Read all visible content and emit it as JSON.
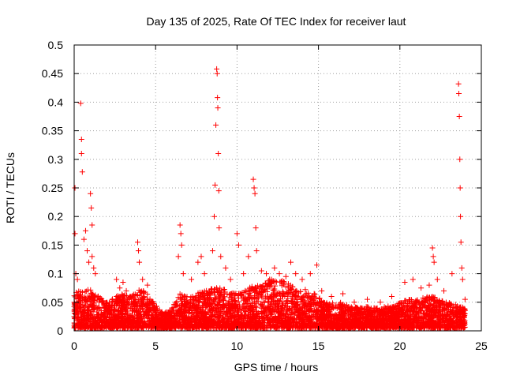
{
  "chart_data": {
    "type": "scatter",
    "title": "Day 135 of 2025, Rate Of TEC Index for receiver laut",
    "xlabel": "GPS time / hours",
    "ylabel": "ROTI / TECUs",
    "xlim": [
      0,
      25
    ],
    "ylim": [
      0,
      0.5
    ],
    "x_ticks": [
      0,
      5,
      10,
      15,
      20,
      25
    ],
    "x_tick_labels": [
      "0",
      "5",
      "10",
      "15",
      "20",
      "25"
    ],
    "y_ticks": [
      0,
      0.05,
      0.1,
      0.15,
      0.2,
      0.25,
      0.3,
      0.35,
      0.4,
      0.45,
      0.5
    ],
    "y_tick_labels": [
      "0",
      "0.05",
      "0.1",
      "0.15",
      "0.2",
      "0.25",
      "0.3",
      "0.35",
      "0.4",
      "0.45",
      "0.5"
    ],
    "grid": true,
    "marker": "+",
    "colors": {
      "marker": "#ff0000",
      "grid": "#a0a0a0",
      "axis": "#000000"
    },
    "series": [
      {
        "name": "laut",
        "data_description": "dense ROTI point cloud 0-24h, mostly 0.005-0.06 TECU/min",
        "points": [
          [
            0.05,
            0.25
          ],
          [
            0.05,
            0.17
          ],
          [
            0.1,
            0.1
          ],
          [
            0.2,
            0.09
          ],
          [
            0.4,
            0.398
          ],
          [
            0.45,
            0.335
          ],
          [
            0.45,
            0.31
          ],
          [
            0.5,
            0.278
          ],
          [
            0.6,
            0.16
          ],
          [
            0.7,
            0.175
          ],
          [
            0.8,
            0.14
          ],
          [
            0.9,
            0.12
          ],
          [
            1.0,
            0.24
          ],
          [
            1.05,
            0.215
          ],
          [
            1.1,
            0.185
          ],
          [
            1.1,
            0.13
          ],
          [
            1.2,
            0.11
          ],
          [
            1.3,
            0.1
          ],
          [
            2.6,
            0.09
          ],
          [
            2.8,
            0.075
          ],
          [
            3.0,
            0.085
          ],
          [
            3.2,
            0.07
          ],
          [
            3.9,
            0.155
          ],
          [
            3.95,
            0.14
          ],
          [
            4.0,
            0.12
          ],
          [
            4.2,
            0.09
          ],
          [
            4.5,
            0.08
          ],
          [
            6.4,
            0.13
          ],
          [
            6.5,
            0.185
          ],
          [
            6.55,
            0.17
          ],
          [
            6.6,
            0.15
          ],
          [
            6.7,
            0.1
          ],
          [
            7.2,
            0.09
          ],
          [
            7.6,
            0.12
          ],
          [
            7.8,
            0.13
          ],
          [
            8.0,
            0.1
          ],
          [
            8.5,
            0.14
          ],
          [
            8.6,
            0.2
          ],
          [
            8.65,
            0.255
          ],
          [
            8.7,
            0.36
          ],
          [
            8.75,
            0.458
          ],
          [
            8.78,
            0.45
          ],
          [
            8.8,
            0.408
          ],
          [
            8.82,
            0.39
          ],
          [
            8.85,
            0.31
          ],
          [
            8.88,
            0.245
          ],
          [
            8.9,
            0.18
          ],
          [
            9.0,
            0.13
          ],
          [
            9.3,
            0.11
          ],
          [
            9.6,
            0.09
          ],
          [
            10.0,
            0.17
          ],
          [
            10.1,
            0.15
          ],
          [
            10.4,
            0.1
          ],
          [
            10.7,
            0.13
          ],
          [
            11.0,
            0.265
          ],
          [
            11.05,
            0.25
          ],
          [
            11.1,
            0.24
          ],
          [
            11.15,
            0.18
          ],
          [
            11.2,
            0.14
          ],
          [
            11.5,
            0.105
          ],
          [
            11.8,
            0.1
          ],
          [
            12.0,
            0.09
          ],
          [
            12.3,
            0.11
          ],
          [
            12.6,
            0.1
          ],
          [
            13.0,
            0.095
          ],
          [
            13.3,
            0.12
          ],
          [
            13.6,
            0.1
          ],
          [
            14.0,
            0.09
          ],
          [
            14.5,
            0.1
          ],
          [
            14.9,
            0.115
          ],
          [
            15.2,
            0.07
          ],
          [
            15.8,
            0.06
          ],
          [
            16.5,
            0.065
          ],
          [
            17.2,
            0.05
          ],
          [
            18.0,
            0.055
          ],
          [
            18.8,
            0.05
          ],
          [
            19.5,
            0.06
          ],
          [
            20.3,
            0.085
          ],
          [
            20.8,
            0.09
          ],
          [
            21.3,
            0.075
          ],
          [
            21.8,
            0.08
          ],
          [
            22.0,
            0.145
          ],
          [
            22.05,
            0.13
          ],
          [
            22.1,
            0.12
          ],
          [
            22.3,
            0.09
          ],
          [
            22.7,
            0.07
          ],
          [
            23.2,
            0.1
          ],
          [
            23.6,
            0.432
          ],
          [
            23.62,
            0.415
          ],
          [
            23.65,
            0.375
          ],
          [
            23.68,
            0.3
          ],
          [
            23.7,
            0.25
          ],
          [
            23.72,
            0.2
          ],
          [
            23.75,
            0.155
          ],
          [
            23.8,
            0.11
          ],
          [
            23.85,
            0.09
          ],
          [
            24.0,
            0.055
          ]
        ],
        "background_envelope": {
          "hours": [
            0,
            0.5,
            1,
            1.5,
            2,
            2.5,
            3,
            3.5,
            4,
            4.5,
            5,
            5.5,
            6,
            6.5,
            7,
            7.5,
            8,
            8.5,
            9,
            9.5,
            10,
            10.5,
            11,
            11.5,
            12,
            12.5,
            13,
            13.5,
            14,
            14.5,
            15,
            15.5,
            16,
            16.5,
            17,
            17.5,
            18,
            18.5,
            19,
            19.5,
            20,
            20.5,
            21,
            21.5,
            22,
            22.5,
            23,
            23.5,
            24
          ],
          "upper": [
            0.07,
            0.07,
            0.075,
            0.06,
            0.05,
            0.06,
            0.065,
            0.06,
            0.075,
            0.065,
            0.045,
            0.03,
            0.04,
            0.065,
            0.06,
            0.065,
            0.07,
            0.075,
            0.075,
            0.07,
            0.065,
            0.075,
            0.08,
            0.08,
            0.09,
            0.09,
            0.085,
            0.08,
            0.075,
            0.07,
            0.06,
            0.05,
            0.048,
            0.05,
            0.045,
            0.04,
            0.042,
            0.04,
            0.042,
            0.045,
            0.05,
            0.055,
            0.055,
            0.06,
            0.06,
            0.055,
            0.05,
            0.045,
            0.04
          ],
          "lower": 0.005
        }
      }
    ]
  }
}
